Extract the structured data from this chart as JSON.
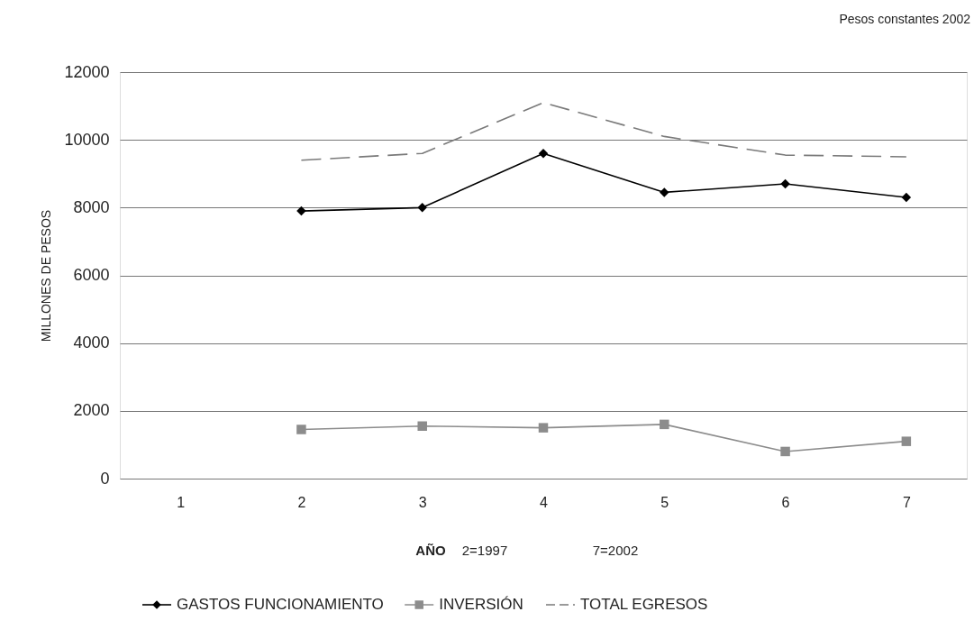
{
  "chart_data": {
    "type": "line",
    "ylabel": "MILLONES DE PESOS",
    "xlabel": "AÑO",
    "annotations": [
      "Pesos constantes 2002",
      "2=1997",
      "7=2002"
    ],
    "categories": [
      "1",
      "2",
      "3",
      "4",
      "5",
      "6",
      "7"
    ],
    "series": [
      {
        "name": "GASTOS FUNCIONAMIENTO",
        "color": "#000000",
        "marker": "diamond",
        "line_style": "solid",
        "values": [
          null,
          7900,
          8000,
          9600,
          8450,
          8700,
          8300
        ]
      },
      {
        "name": "INVERSIÓN",
        "color": "#8c8c8c",
        "marker": "square",
        "line_style": "solid",
        "values": [
          null,
          1450,
          1550,
          1500,
          1600,
          800,
          1100
        ]
      },
      {
        "name": "TOTAL EGRESOS",
        "color": "#7a7a7a",
        "marker": "none",
        "line_style": "dashed",
        "values": [
          null,
          9400,
          9600,
          11100,
          10100,
          9550,
          9500
        ]
      }
    ],
    "ylim": [
      0,
      12000
    ],
    "yticks": [
      0,
      2000,
      4000,
      6000,
      8000,
      10000,
      12000
    ],
    "grid": "y",
    "legend": "bottom"
  }
}
